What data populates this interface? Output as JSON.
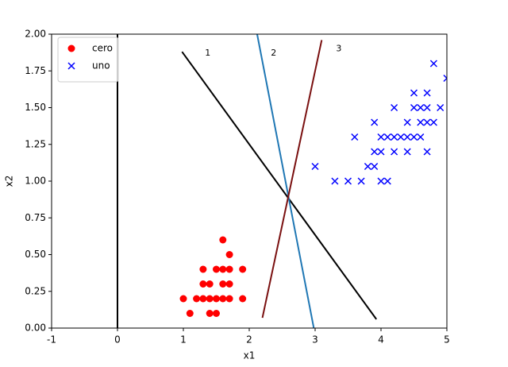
{
  "chart_data": {
    "type": "scatter",
    "xlabel": "x1",
    "ylabel": "x2",
    "xlim": [
      -1,
      5
    ],
    "ylim": [
      0,
      2
    ],
    "xticks": [
      -1,
      0,
      1,
      2,
      3,
      4,
      5
    ],
    "yticks": [
      {
        "value": 0,
        "label": "0.00"
      },
      {
        "value": 0.25,
        "label": "0.25"
      },
      {
        "value": 0.5,
        "label": "0.50"
      },
      {
        "value": 0.75,
        "label": "0.75"
      },
      {
        "value": 1,
        "label": "1.00"
      },
      {
        "value": 1.25,
        "label": "1.25"
      },
      {
        "value": 1.5,
        "label": "1.50"
      },
      {
        "value": 1.75,
        "label": "1.75"
      },
      {
        "value": 2,
        "label": "2.00"
      }
    ],
    "legend": "upper left",
    "series": [
      {
        "name": "cero",
        "type": "scatter",
        "marker": "o",
        "color": "#ff0000",
        "x": [
          1.6,
          1.7,
          1.3,
          1.5,
          1.6,
          1.7,
          1.9,
          1.3,
          1.4,
          1.6,
          1.7,
          1.0,
          1.2,
          1.3,
          1.4,
          1.5,
          1.6,
          1.7,
          1.9,
          1.1,
          1.4,
          1.5
        ],
        "values": [
          0.6,
          0.5,
          0.4,
          0.4,
          0.4,
          0.4,
          0.4,
          0.3,
          0.3,
          0.3,
          0.3,
          0.2,
          0.2,
          0.2,
          0.2,
          0.2,
          0.2,
          0.2,
          0.2,
          0.1,
          0.1,
          0.1
        ]
      },
      {
        "name": "uno",
        "type": "scatter",
        "marker": "x",
        "color": "#0000ff",
        "x": [
          4.8,
          5.0,
          4.5,
          4.7,
          4.2,
          4.5,
          4.6,
          4.7,
          4.9,
          3.9,
          4.4,
          4.6,
          4.7,
          4.8,
          3.6,
          4.0,
          4.1,
          4.2,
          4.3,
          4.4,
          4.5,
          4.6,
          3.9,
          4.0,
          4.2,
          4.4,
          4.7,
          3.0,
          3.8,
          3.9,
          3.3,
          3.5,
          3.7,
          4.0,
          4.1
        ],
        "values": [
          1.8,
          1.7,
          1.6,
          1.6,
          1.5,
          1.5,
          1.5,
          1.5,
          1.5,
          1.4,
          1.4,
          1.4,
          1.4,
          1.4,
          1.3,
          1.3,
          1.3,
          1.3,
          1.3,
          1.3,
          1.3,
          1.3,
          1.2,
          1.2,
          1.2,
          1.2,
          1.2,
          1.1,
          1.1,
          1.1,
          1.0,
          1.0,
          1.0,
          1.0,
          1.0
        ]
      },
      {
        "type": "line",
        "color": "#000000",
        "x": [
          0,
          0
        ],
        "values": [
          0,
          2
        ]
      },
      {
        "type": "line",
        "color": "#000000",
        "x": [
          0.98,
          3.93
        ],
        "values": [
          1.88,
          0.06
        ]
      },
      {
        "type": "line",
        "color": "#1f77b4",
        "x": [
          2.12,
          2.98
        ],
        "values": [
          2.0,
          0.0
        ]
      },
      {
        "type": "line",
        "color": "#7a1010",
        "x": [
          2.2,
          3.1
        ],
        "values": [
          0.07,
          1.96
        ]
      }
    ],
    "annotations": [
      {
        "text": "1",
        "x": 1.37,
        "y": 1.87
      },
      {
        "text": "2",
        "x": 2.37,
        "y": 1.87
      },
      {
        "text": "3",
        "x": 3.36,
        "y": 1.9
      }
    ]
  }
}
